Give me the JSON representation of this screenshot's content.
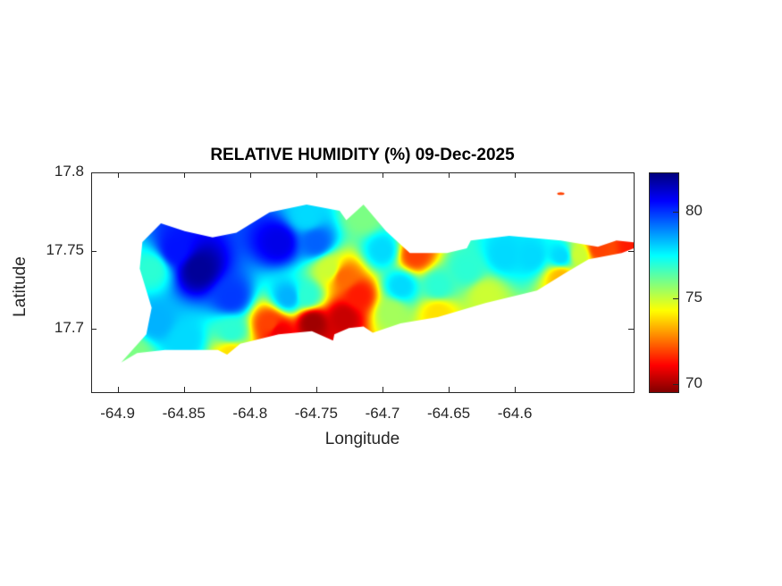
{
  "chart_data": {
    "type": "heatmap",
    "title": "RELATIVE HUMIDITY (%) 09-Dec-2025",
    "xlabel": "Longitude",
    "ylabel": "Latitude",
    "xlim": [
      -64.92,
      -64.511
    ],
    "ylim": [
      17.66,
      17.8
    ],
    "xticks": [
      -64.9,
      -64.85,
      -64.8,
      -64.75,
      -64.7,
      -64.65,
      -64.6
    ],
    "xtick_labels": [
      "-64.9",
      "-64.85",
      "-64.8",
      "-64.75",
      "-64.7",
      "-64.65",
      "-64.6"
    ],
    "yticks": [
      17.7,
      17.75,
      17.8
    ],
    "ytick_labels": [
      "17.7",
      "17.75",
      "17.8"
    ],
    "colormap": "jet",
    "clim": [
      69.6,
      82.3
    ],
    "colorbar": {
      "ticks": [
        70,
        75,
        80
      ],
      "tick_labels": [
        "70",
        "75",
        "80"
      ]
    },
    "grid": false,
    "island_outline": [
      [
        -64.898,
        17.679
      ],
      [
        -64.879,
        17.697
      ],
      [
        -64.875,
        17.714
      ],
      [
        -64.884,
        17.739
      ],
      [
        -64.882,
        17.756
      ],
      [
        -64.868,
        17.768
      ],
      [
        -64.85,
        17.763
      ],
      [
        -64.829,
        17.759
      ],
      [
        -64.811,
        17.762
      ],
      [
        -64.786,
        17.775
      ],
      [
        -64.758,
        17.78
      ],
      [
        -64.733,
        17.776
      ],
      [
        -64.728,
        17.77
      ],
      [
        -64.715,
        17.78
      ],
      [
        -64.698,
        17.763
      ],
      [
        -64.68,
        17.749
      ],
      [
        -64.652,
        17.749
      ],
      [
        -64.637,
        17.752
      ],
      [
        -64.634,
        17.757
      ],
      [
        -64.605,
        17.76
      ],
      [
        -64.566,
        17.757
      ],
      [
        -64.538,
        17.753
      ],
      [
        -64.524,
        17.757
      ],
      [
        -64.502,
        17.755
      ],
      [
        -64.52,
        17.749
      ],
      [
        -64.545,
        17.745
      ],
      [
        -64.563,
        17.736
      ],
      [
        -64.584,
        17.725
      ],
      [
        -64.623,
        17.717
      ],
      [
        -64.659,
        17.708
      ],
      [
        -64.687,
        17.704
      ],
      [
        -64.708,
        17.698
      ],
      [
        -64.715,
        17.702
      ],
      [
        -64.726,
        17.701
      ],
      [
        -64.737,
        17.697
      ],
      [
        -64.738,
        17.693
      ],
      [
        -64.754,
        17.699
      ],
      [
        -64.779,
        17.697
      ],
      [
        -64.808,
        17.691
      ],
      [
        -64.818,
        17.684
      ],
      [
        -64.825,
        17.687
      ],
      [
        -64.865,
        17.687
      ],
      [
        -64.886,
        17.685
      ]
    ],
    "islet": {
      "lon": -64.566,
      "lat": 17.787,
      "value": 72
    },
    "samples": [
      [
        -64.84,
        17.739,
        82
      ],
      [
        -64.779,
        17.756,
        81
      ],
      [
        -64.857,
        17.751,
        80.5
      ],
      [
        -64.875,
        17.739,
        77
      ],
      [
        -64.872,
        17.705,
        78.5
      ],
      [
        -64.889,
        17.685,
        76
      ],
      [
        -64.85,
        17.694,
        78
      ],
      [
        -64.815,
        17.699,
        77
      ],
      [
        -64.786,
        17.704,
        72
      ],
      [
        -64.779,
        17.699,
        71
      ],
      [
        -64.754,
        17.705,
        70
      ],
      [
        -64.73,
        17.708,
        70.5
      ],
      [
        -64.719,
        17.722,
        71.5
      ],
      [
        -64.73,
        17.734,
        72.5
      ],
      [
        -64.741,
        17.739,
        75
      ],
      [
        -64.758,
        17.722,
        77
      ],
      [
        -64.751,
        17.756,
        79.5
      ],
      [
        -64.758,
        17.773,
        78
      ],
      [
        -64.715,
        17.773,
        76
      ],
      [
        -64.701,
        17.751,
        78
      ],
      [
        -64.676,
        17.748,
        72
      ],
      [
        -64.687,
        17.728,
        78
      ],
      [
        -64.694,
        17.711,
        75.5
      ],
      [
        -64.659,
        17.728,
        77
      ],
      [
        -64.637,
        17.739,
        77
      ],
      [
        -64.623,
        17.722,
        75
      ],
      [
        -64.659,
        17.711,
        74
      ],
      [
        -64.609,
        17.748,
        78
      ],
      [
        -64.588,
        17.747,
        78
      ],
      [
        -64.566,
        17.747,
        78
      ],
      [
        -64.552,
        17.748,
        75
      ],
      [
        -64.566,
        17.734,
        73.5
      ],
      [
        -64.538,
        17.752,
        72
      ],
      [
        -64.51,
        17.754,
        71.5
      ],
      [
        -64.815,
        17.685,
        74
      ],
      [
        -64.815,
        17.721,
        80
      ],
      [
        -64.772,
        17.721,
        78.5
      ]
    ]
  }
}
